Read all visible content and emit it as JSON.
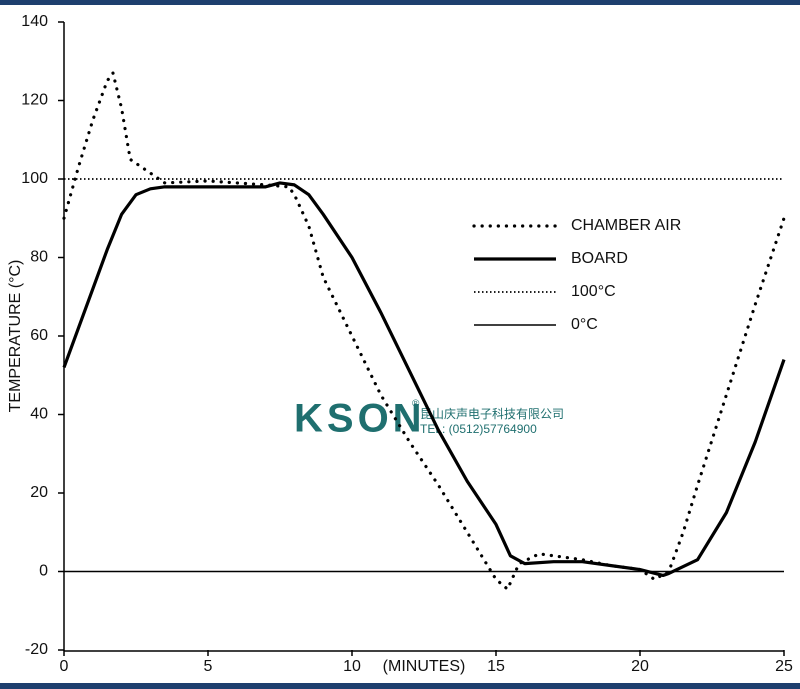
{
  "chart_data": {
    "type": "line",
    "xlabel": "(MINUTES)",
    "ylabel": "TEMPERATURE (°C)",
    "xlim": [
      0,
      25
    ],
    "xticks": [
      0,
      5,
      10,
      15,
      20,
      25
    ],
    "ylim": [
      -20,
      140
    ],
    "yticks": [
      -20,
      0,
      20,
      40,
      60,
      80,
      100,
      120,
      140
    ],
    "legend": "right",
    "series": [
      {
        "name": "CHAMBER AIR",
        "color": "#000000",
        "style": "dotted",
        "x": [
          0,
          0.5,
          1,
          1.5,
          1.7,
          2,
          2.3,
          2.9,
          3.5,
          5,
          6,
          7,
          7.8,
          8,
          8.5,
          9,
          10,
          11,
          12,
          13,
          14,
          15,
          15.4,
          15.8,
          16.5,
          17,
          18,
          19,
          20,
          20.5,
          21,
          21.5,
          22,
          23,
          24,
          25
        ],
        "values": [
          90,
          103,
          115,
          125,
          127,
          118,
          105,
          102,
          99,
          99.5,
          99,
          98.5,
          98,
          96,
          88,
          75,
          60,
          45,
          33,
          22,
          10,
          -2,
          -4.5,
          2,
          4.5,
          4,
          3,
          1.5,
          0.5,
          -2,
          0,
          10,
          22,
          45,
          68,
          90
        ]
      },
      {
        "name": "BOARD",
        "color": "#000000",
        "style": "bold",
        "x": [
          0,
          0.5,
          1,
          1.5,
          2,
          2.5,
          3,
          3.5,
          5,
          7,
          7.5,
          8,
          8.5,
          9,
          10,
          11,
          12,
          13,
          14,
          15,
          15.5,
          16,
          17,
          18,
          19,
          20,
          20.8,
          21,
          22,
          23,
          24,
          25
        ],
        "values": [
          52,
          62,
          72,
          82,
          91,
          96,
          97.5,
          98,
          98,
          98,
          99,
          98.5,
          96,
          91,
          80,
          66,
          51,
          36,
          23,
          12,
          4,
          2,
          2.5,
          2.5,
          1.5,
          0.5,
          -1,
          -0.5,
          3,
          15,
          33,
          54
        ]
      },
      {
        "name": "100°C",
        "color": "#000000",
        "style": "fine-dotted",
        "x": [
          0,
          25
        ],
        "values": [
          100,
          100
        ]
      },
      {
        "name": "0°C",
        "color": "#000000",
        "style": "solid",
        "x": [
          0,
          25
        ],
        "values": [
          0,
          0
        ]
      }
    ]
  },
  "watermark": {
    "logo": "KSON",
    "mark": "®",
    "company": "昆山庆声电子科技有限公司",
    "phone": "TEL: (0512)57764900"
  }
}
